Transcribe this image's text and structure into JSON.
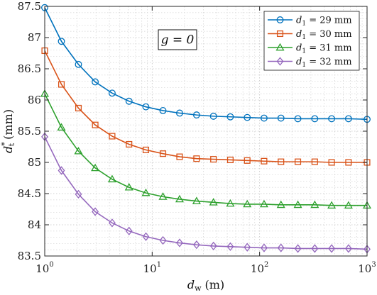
{
  "chart_data": {
    "type": "line",
    "xscale": "log",
    "xlim": [
      1,
      1000
    ],
    "ylim": [
      83.5,
      87.5
    ],
    "x_ticks": [
      {
        "value": 1,
        "base": "10",
        "exp": "0"
      },
      {
        "value": 10,
        "base": "10",
        "exp": "1"
      },
      {
        "value": 100,
        "base": "10",
        "exp": "2"
      },
      {
        "value": 1000,
        "base": "10",
        "exp": "3"
      }
    ],
    "y_ticks": [
      {
        "value": 83.5,
        "label": "83.5"
      },
      {
        "value": 84,
        "label": "84"
      },
      {
        "value": 84.5,
        "label": "84.5"
      },
      {
        "value": 85,
        "label": "85"
      },
      {
        "value": 85.5,
        "label": "85.5"
      },
      {
        "value": 86,
        "label": "86"
      },
      {
        "value": 86.5,
        "label": "86.5"
      },
      {
        "value": 87,
        "label": "87"
      },
      {
        "value": 87.5,
        "label": "87.5"
      }
    ],
    "xlabel": {
      "main": "d",
      "sub": "w",
      "unit": "(m)"
    },
    "ylabel": {
      "main": "d",
      "sup": "*",
      "sub": "t",
      "unit": "(mm)"
    },
    "grid": "major and minor, dotted",
    "legend_position": "top-right",
    "annotation": {
      "text": "g = 0",
      "position": "upper-center"
    },
    "x": [
      1,
      1.43,
      2.06,
      2.95,
      4.24,
      6.09,
      8.74,
      12.6,
      18.0,
      25.9,
      37.2,
      53.4,
      76.7,
      110,
      158,
      227,
      326,
      468,
      672,
      1000
    ],
    "series": [
      {
        "name": "d1 = 29 mm",
        "legend": {
          "main": "d",
          "sub": "1",
          "rest": "= 29 mm"
        },
        "color": "#0072BD",
        "marker": "circle",
        "values": [
          87.48,
          86.94,
          86.57,
          86.29,
          86.11,
          85.98,
          85.89,
          85.83,
          85.79,
          85.76,
          85.74,
          85.73,
          85.72,
          85.71,
          85.71,
          85.7,
          85.7,
          85.7,
          85.7,
          85.69
        ]
      },
      {
        "name": "d1 = 30 mm",
        "legend": {
          "main": "d",
          "sub": "1",
          "rest": "= 30 mm"
        },
        "color": "#D95319",
        "marker": "square",
        "values": [
          86.79,
          86.25,
          85.87,
          85.6,
          85.42,
          85.29,
          85.2,
          85.14,
          85.09,
          85.06,
          85.05,
          85.04,
          85.03,
          85.02,
          85.01,
          85.01,
          85.01,
          85.0,
          85.0,
          85.0
        ]
      },
      {
        "name": "d1 = 31 mm",
        "legend": {
          "main": "d",
          "sub": "1",
          "rest": "= 31 mm"
        },
        "color": "#2CA02C",
        "marker": "triangle",
        "values": [
          86.1,
          85.56,
          85.18,
          84.91,
          84.73,
          84.6,
          84.51,
          84.45,
          84.41,
          84.38,
          84.36,
          84.34,
          84.33,
          84.33,
          84.32,
          84.32,
          84.32,
          84.31,
          84.31,
          84.31
        ]
      },
      {
        "name": "d1 = 32 mm",
        "legend": {
          "main": "d",
          "sub": "1",
          "rest": "= 32 mm"
        },
        "color": "#9467BD",
        "marker": "diamond",
        "values": [
          85.41,
          84.87,
          84.49,
          84.21,
          84.03,
          83.9,
          83.81,
          83.75,
          83.71,
          83.68,
          83.66,
          83.65,
          83.64,
          83.63,
          83.63,
          83.62,
          83.62,
          83.62,
          83.62,
          83.61
        ]
      }
    ]
  }
}
